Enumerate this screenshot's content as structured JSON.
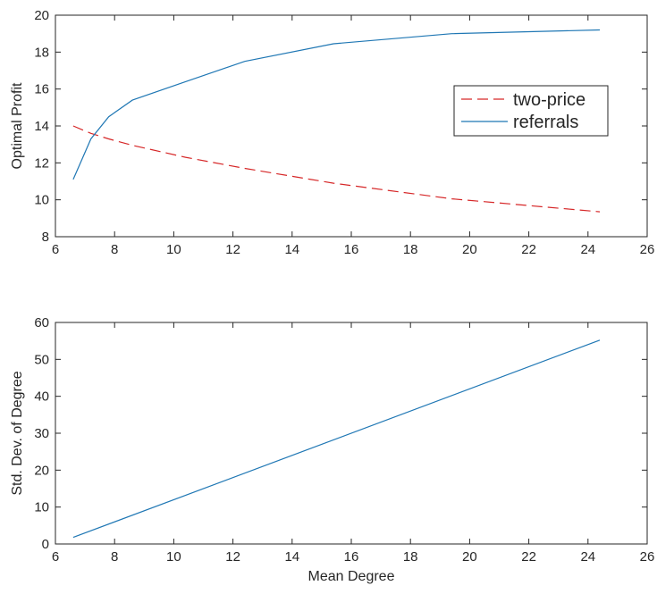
{
  "chart_data": [
    {
      "type": "line",
      "title": "",
      "xlabel": "",
      "ylabel": "Optimal Profit",
      "xlim": [
        6,
        26
      ],
      "ylim": [
        8,
        20
      ],
      "xticks": [
        "6",
        "8",
        "10",
        "12",
        "14",
        "16",
        "18",
        "20",
        "22",
        "24",
        "26"
      ],
      "yticks": [
        "8",
        "10",
        "12",
        "14",
        "16",
        "18",
        "20"
      ],
      "grid": false,
      "legend_position": "center-right",
      "series": [
        {
          "name": "two-price",
          "color": "#d62728",
          "style": "dashed",
          "x": [
            6.6,
            7.2,
            7.8,
            8.6,
            10.4,
            12.4,
            15.4,
            19.4,
            24.4
          ],
          "y": [
            14.0,
            13.6,
            13.3,
            12.95,
            12.3,
            11.7,
            10.9,
            10.05,
            9.35
          ]
        },
        {
          "name": "referrals",
          "color": "#1f77b4",
          "style": "solid",
          "x": [
            6.6,
            7.2,
            7.8,
            8.6,
            10.4,
            12.4,
            15.4,
            19.4,
            24.4
          ],
          "y": [
            11.1,
            13.3,
            14.5,
            15.4,
            16.4,
            17.5,
            18.45,
            19.0,
            19.2
          ]
        }
      ]
    },
    {
      "type": "line",
      "title": "",
      "xlabel": "Mean Degree",
      "ylabel": "Std. Dev. of Degree",
      "xlim": [
        6,
        26
      ],
      "ylim": [
        0,
        60
      ],
      "xticks": [
        "6",
        "8",
        "10",
        "12",
        "14",
        "16",
        "18",
        "20",
        "22",
        "24",
        "26"
      ],
      "yticks": [
        "0",
        "10",
        "20",
        "30",
        "40",
        "50",
        "60"
      ],
      "grid": false,
      "series": [
        {
          "color": "#1f77b4",
          "style": "solid",
          "x": [
            6.6,
            24.4
          ],
          "y": [
            1.8,
            55.2
          ]
        }
      ]
    }
  ]
}
